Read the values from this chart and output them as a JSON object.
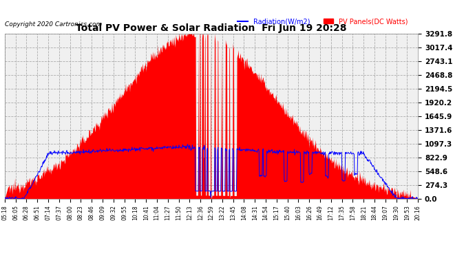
{
  "title": "Total PV Power & Solar Radiation  Fri Jun 19 20:28",
  "copyright": "Copyright 2020 Cartronics.com",
  "legend_radiation": "Radiation(W/m2)",
  "legend_pv": "PV Panels(DC Watts)",
  "yticks": [
    0.0,
    274.3,
    548.6,
    822.9,
    1097.3,
    1371.6,
    1645.9,
    1920.2,
    2194.5,
    2468.8,
    2743.1,
    3017.4,
    3291.8
  ],
  "ymax": 3291.8,
  "bg_color": "#ffffff",
  "plot_bg_color": "#f0f0f0",
  "grid_color": "#aaaaaa",
  "pv_color": "#ff0000",
  "radiation_color": "#0000ff",
  "xtick_labels": [
    "05:18",
    "06:05",
    "06:28",
    "06:51",
    "07:14",
    "07:37",
    "08:00",
    "08:23",
    "08:46",
    "09:09",
    "09:32",
    "09:55",
    "10:18",
    "10:41",
    "11:04",
    "11:27",
    "11:50",
    "12:13",
    "12:36",
    "12:59",
    "13:22",
    "13:45",
    "14:08",
    "14:31",
    "14:54",
    "15:17",
    "15:40",
    "16:03",
    "16:26",
    "16:49",
    "17:12",
    "17:35",
    "17:58",
    "18:21",
    "18:44",
    "19:07",
    "19:30",
    "19:53",
    "20:16"
  ]
}
